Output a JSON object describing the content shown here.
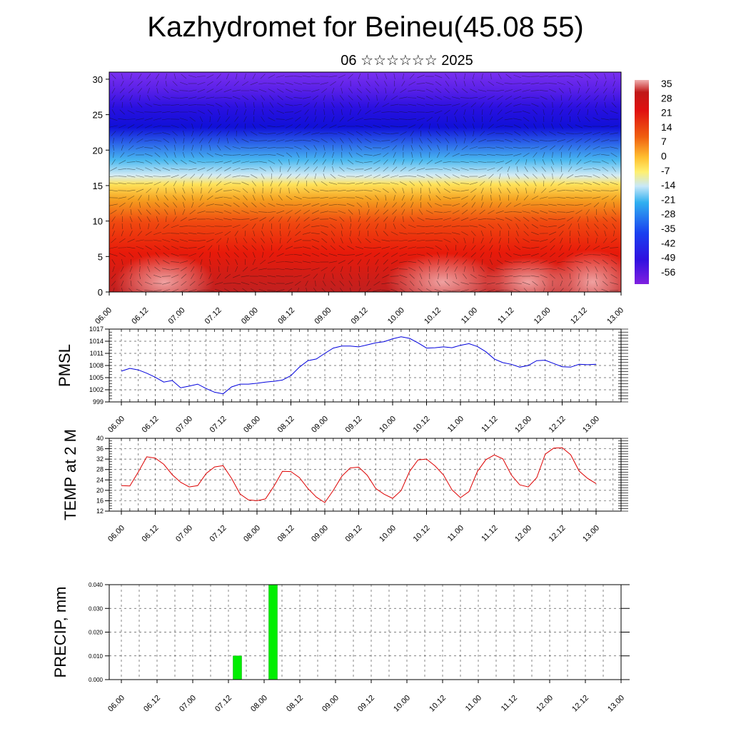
{
  "title": "Kazhydromet for Beineu(45.08 55)",
  "subtitle": "06 ☆☆☆☆☆☆ 2025",
  "colors": {
    "pmsl_line": "#0000dd",
    "temp_line": "#dd0000",
    "precip_bar": "#00ee00",
    "grid": "#444444"
  },
  "chart_data": [
    {
      "type": "heatmap",
      "name_key": "cross-section",
      "x_tick_labels": [
        "06.00",
        "06.12",
        "07.00",
        "07.12",
        "08.00",
        "08.12",
        "09.00",
        "09.12",
        "10.00",
        "10.12",
        "11.00",
        "11.12",
        "12.00",
        "12.12",
        "13.00"
      ],
      "y_ticks": [
        0,
        5,
        10,
        15,
        20,
        25,
        30
      ],
      "ylim": [
        0,
        31
      ],
      "colorbar_labels": [
        "35",
        "28",
        "21",
        "14",
        "7",
        "0",
        "-7",
        "-14",
        "-21",
        "-28",
        "-35",
        "-42",
        "-49",
        "-56"
      ],
      "grid": false,
      "legend_position": "right"
    },
    {
      "type": "line",
      "ylabel": "PMSL",
      "x_tick_labels": [
        "06.00",
        "06.12",
        "07.00",
        "07.12",
        "08.00",
        "08.12",
        "09.00",
        "09.12",
        "10.00",
        "10.12",
        "11.00",
        "11.12",
        "12.00",
        "12.12",
        "13.00"
      ],
      "y_ticks": [
        999,
        1002,
        1005,
        1008,
        1011,
        1014,
        1017
      ],
      "ylim": [
        999,
        1017
      ],
      "values": [
        1006.6,
        1007.3,
        1006.9,
        1006.1,
        1005.1,
        1003.9,
        1004.3,
        1002.5,
        1002.9,
        1003.4,
        1002.3,
        1001.4,
        1001.0,
        1002.7,
        1003.4,
        1003.4,
        1003.6,
        1003.9,
        1004.1,
        1004.4,
        1005.5,
        1007.6,
        1009.2,
        1009.6,
        1011.0,
        1012.3,
        1012.8,
        1012.8,
        1012.6,
        1013.1,
        1013.6,
        1013.9,
        1014.6,
        1015.1,
        1014.7,
        1013.6,
        1012.3,
        1012.4,
        1012.6,
        1012.4,
        1013.0,
        1013.4,
        1012.7,
        1011.4,
        1009.6,
        1008.7,
        1008.3,
        1007.6,
        1008.0,
        1009.2,
        1009.3,
        1008.5,
        1007.7,
        1007.6,
        1008.3,
        1008.2,
        1008.3
      ],
      "grid": true
    },
    {
      "type": "line",
      "ylabel": "TEMP at 2 M",
      "x_tick_labels": [
        "06.00",
        "06.12",
        "07.00",
        "07.12",
        "08.00",
        "08.12",
        "09.00",
        "09.12",
        "10.00",
        "10.12",
        "11.00",
        "11.12",
        "12.00",
        "12.12",
        "13.00"
      ],
      "y_ticks": [
        12,
        16,
        20,
        24,
        28,
        32,
        36,
        40
      ],
      "ylim": [
        12,
        40
      ],
      "values": [
        21.8,
        21.7,
        27.1,
        32.9,
        32.4,
        30.0,
        26.0,
        23.1,
        21.3,
        21.8,
        26.5,
        29.0,
        29.5,
        24.6,
        18.6,
        16.3,
        16.0,
        16.7,
        21.6,
        27.3,
        27.2,
        24.9,
        20.7,
        17.4,
        15.3,
        20.0,
        25.4,
        28.6,
        28.9,
        25.8,
        20.7,
        18.5,
        16.9,
        19.9,
        27.3,
        31.7,
        32.0,
        29.4,
        25.9,
        20.2,
        17.2,
        19.5,
        27.3,
        31.8,
        33.6,
        32.1,
        25.9,
        22.1,
        21.3,
        24.9,
        33.9,
        36.2,
        36.4,
        33.7,
        27.4,
        24.6,
        22.6
      ],
      "grid": true
    },
    {
      "type": "bar",
      "ylabel": "PRECIP, mm",
      "x_tick_labels": [
        "06.00",
        "06.12",
        "07.00",
        "07.12",
        "08.00",
        "08.12",
        "09.00",
        "09.12",
        "10.00",
        "10.12",
        "11.00",
        "11.12",
        "12.00",
        "12.12",
        "13.00"
      ],
      "y_ticks": [
        "0.000",
        "0.010",
        "0.020",
        "0.030",
        "0.040"
      ],
      "ylim": [
        0,
        0.04
      ],
      "bars": [
        {
          "x_index": 6.5,
          "value": 0.01
        },
        {
          "x_index": 8.5,
          "value": 0.04
        }
      ],
      "grid": true
    }
  ]
}
